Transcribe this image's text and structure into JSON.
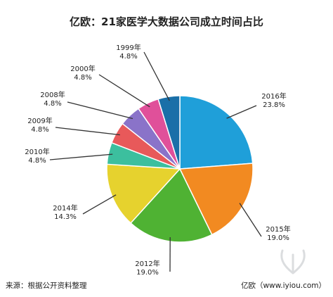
{
  "title": "亿欧：21家医学大数据公司成立时间占比",
  "source": "来源：根据公开资料整理",
  "watermark": "亿欧（www.iyiou.com）",
  "chart_data": {
    "type": "pie",
    "title": "亿欧：21家医学大数据公司成立时间占比",
    "slices": [
      {
        "label": "2016年",
        "pct_label": "23.8%",
        "value": 23.8,
        "color": "#1f9fd9"
      },
      {
        "label": "2015年",
        "pct_label": "19.0%",
        "value": 19.0,
        "color": "#f28a21"
      },
      {
        "label": "2012年",
        "pct_label": "19.0%",
        "value": 19.0,
        "color": "#4fb233"
      },
      {
        "label": "2014年",
        "pct_label": "14.3%",
        "value": 14.3,
        "color": "#e6d22e"
      },
      {
        "label": "2010年",
        "pct_label": "4.8%",
        "value": 4.8,
        "color": "#3cbf9e"
      },
      {
        "label": "2009年",
        "pct_label": "4.8%",
        "value": 4.8,
        "color": "#e8595a"
      },
      {
        "label": "2008年",
        "pct_label": "4.8%",
        "value": 4.8,
        "color": "#8a73c9"
      },
      {
        "label": "2000年",
        "pct_label": "4.8%",
        "value": 4.8,
        "color": "#e0509a"
      },
      {
        "label": "1999年",
        "pct_label": "4.8%",
        "value": 4.8,
        "color": "#1a6fa8"
      }
    ]
  }
}
